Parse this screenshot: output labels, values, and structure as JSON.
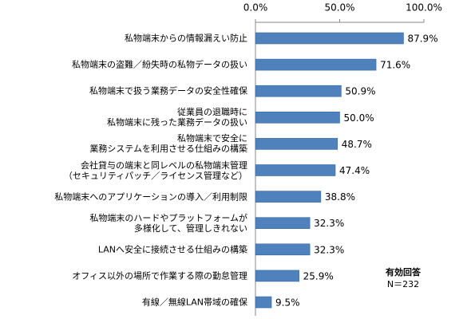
{
  "chart_data": {
    "type": "bar",
    "orientation": "horizontal",
    "categories": [
      "私物端末からの情報漏えい防止",
      "私物端末の盗難／紛失時の私物データの扱い",
      "私物端末で扱う業務データの安全性確保",
      "従業員の退職時に\n私物端末に残った業務データの扱い",
      "私物端末で安全に\n業務システムを利用させる仕組みの構築",
      "会社貸与の端末と同レベルの私物端末管理\n（セキュリティパッチ／ライセンス管理など）",
      "私物端末へのアプリケーションの導入／利用制限",
      "私物端末のハードやプラットフォームが\n多様化して、管理しきれない",
      "LANへ安全に接続させる仕組みの構築",
      "オフィス以外の場所で作業する際の勤怠管理",
      "有線／無線LAN帯域の確保"
    ],
    "values": [
      87.9,
      71.6,
      50.9,
      50.0,
      48.7,
      47.4,
      38.8,
      32.3,
      32.3,
      25.9,
      9.5
    ],
    "value_labels": [
      "87.9%",
      "71.6%",
      "50.9%",
      "50.0%",
      "48.7%",
      "47.4%",
      "38.8%",
      "32.3%",
      "32.3%",
      "25.9%",
      "9.5%"
    ],
    "color": "#4f81bd",
    "xlim": [
      0,
      100
    ],
    "xticks": [
      {
        "value": 0,
        "label": "0.0%"
      },
      {
        "value": 50,
        "label": "50.0%"
      },
      {
        "value": 100,
        "label": "100.0%"
      }
    ],
    "annotation": {
      "title": "有効回答",
      "text": "N＝232"
    }
  }
}
